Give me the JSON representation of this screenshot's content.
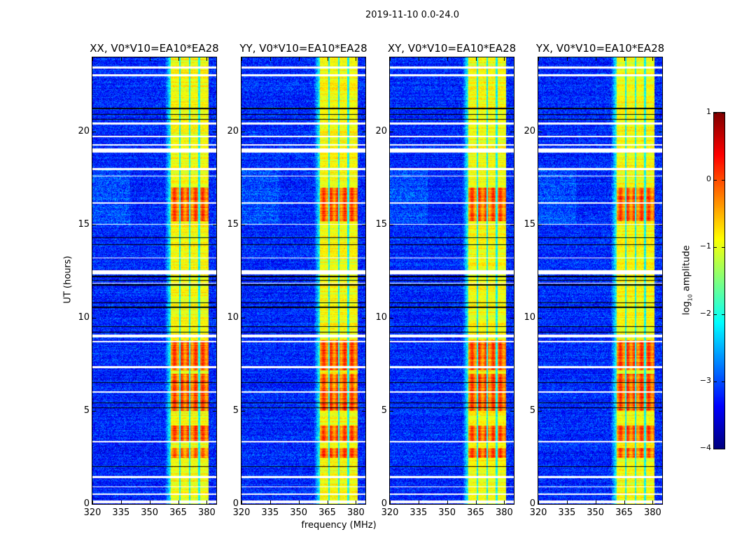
{
  "chart_data": {
    "type": "heatmap",
    "title": "2019-11-10 0.0-24.0",
    "xlabel": "frequency (MHz)",
    "ylabel": "UT (hours)",
    "xlim": [
      320,
      385
    ],
    "ylim": [
      0,
      24
    ],
    "xticks": [
      320,
      335,
      350,
      365,
      380
    ],
    "yticks": [
      0,
      5,
      10,
      15,
      20
    ],
    "colorbar": {
      "label_prefix": "log",
      "label_sub": "10",
      "label_suffix": " amplitude",
      "clim": [
        -4,
        1
      ],
      "ticks": [
        1,
        0,
        -1,
        -2,
        -3,
        -4
      ],
      "tick_labels": [
        "1",
        "0",
        "−1",
        "−2",
        "−3",
        "−4"
      ],
      "colormap": "jet"
    },
    "panels": [
      {
        "title": "XX, V0*V10=EA10*EA28"
      },
      {
        "title": "YY, V0*V10=EA10*EA28"
      },
      {
        "title": "XY, V0*V10=EA10*EA28"
      },
      {
        "title": "YX, V0*V10=EA10*EA28"
      }
    ],
    "background_level": -3.2,
    "band": {
      "freq_range": [
        361,
        381
      ],
      "level": -0.9,
      "gap_freqs": [
        366,
        371,
        376
      ]
    },
    "bright_intervals_hours": [
      [
        15.2,
        17.0
      ],
      [
        7.2,
        8.8
      ],
      [
        5.0,
        7.0
      ],
      [
        3.4,
        4.2
      ],
      [
        2.5,
        3.0
      ]
    ],
    "flagged_white_hours": [
      [
        23.4,
        23.5
      ],
      [
        23.0,
        23.1
      ],
      [
        20.4,
        20.5
      ],
      [
        19.7,
        19.8
      ],
      [
        19.25,
        19.35
      ],
      [
        18.9,
        19.1
      ],
      [
        17.95,
        18.05
      ],
      [
        17.6,
        17.65
      ],
      [
        16.15,
        16.2
      ],
      [
        15.0,
        15.05
      ],
      [
        13.2,
        13.25
      ],
      [
        12.35,
        12.55
      ],
      [
        11.85,
        11.9
      ],
      [
        8.95,
        9.1
      ],
      [
        8.7,
        8.75
      ],
      [
        7.3,
        7.4
      ],
      [
        6.0,
        6.05
      ],
      [
        3.3,
        3.4
      ],
      [
        1.4,
        1.5
      ],
      [
        0.9,
        0.95
      ],
      [
        0.5,
        0.55
      ],
      [
        0.05,
        0.2
      ]
    ],
    "flagged_black_hours": [
      [
        21.2,
        21.3
      ],
      [
        20.9,
        20.95
      ],
      [
        20.65,
        20.7
      ],
      [
        14.3,
        14.35
      ],
      [
        13.9,
        13.95
      ],
      [
        12.2,
        12.25
      ],
      [
        12.0,
        12.05
      ],
      [
        11.75,
        11.8
      ],
      [
        10.8,
        10.85
      ],
      [
        10.55,
        10.6
      ],
      [
        9.5,
        9.55
      ],
      [
        9.2,
        9.25
      ],
      [
        6.5,
        6.55
      ],
      [
        5.4,
        5.45
      ],
      [
        5.15,
        5.2
      ],
      [
        2.0,
        2.05
      ]
    ]
  }
}
